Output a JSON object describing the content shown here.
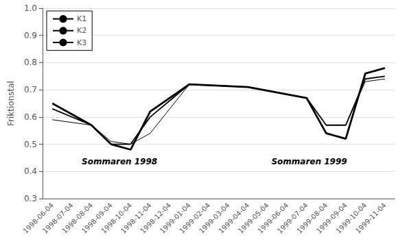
{
  "chart_data": {
    "type": "line",
    "categories": [
      "1998-06-04",
      "1998-07-04",
      "1998-08-04",
      "1998-09-04",
      "1998-10-04",
      "1998-11-04",
      "1998-12-04",
      "1999-01-04",
      "1999-02-04",
      "1999-03-04",
      "1999-04-04",
      "1999-05-04",
      "1999-06-04",
      "1999-07-04",
      "1999-08-04",
      "1999-09-04",
      "1999-10-04",
      "1999-11-04"
    ],
    "series": [
      {
        "name": "K1",
        "color": "#000000",
        "x": [
          "1998-06-04",
          "1998-08-04",
          "1998-09-04",
          "1998-10-04",
          "1998-11-04",
          "1999-01-04",
          "1999-04-04",
          "1999-07-04",
          "1999-08-04",
          "1999-09-04",
          "1999-10-04",
          "1999-11-04"
        ],
        "values": [
          0.65,
          0.57,
          0.5,
          0.48,
          0.62,
          0.72,
          0.71,
          0.67,
          0.54,
          0.52,
          0.76,
          0.78
        ]
      },
      {
        "name": "K2",
        "color": "#000000",
        "x": [
          "1998-06-04",
          "1998-08-04",
          "1998-09-04",
          "1998-10-04",
          "1998-11-04",
          "1999-01-04",
          "1999-04-04",
          "1999-07-04",
          "1999-08-04",
          "1999-09-04",
          "1999-10-04",
          "1999-11-04"
        ],
        "values": [
          0.63,
          0.57,
          0.5,
          0.5,
          0.6,
          0.72,
          0.71,
          0.67,
          0.57,
          0.57,
          0.74,
          0.75
        ]
      },
      {
        "name": "K3",
        "color": "#000000",
        "x": [
          "1998-06-04",
          "1998-08-04",
          "1998-09-04",
          "1998-10-04",
          "1998-11-04",
          "1999-01-04",
          "1999-04-04",
          "1999-07-04",
          "1999-08-04",
          "1999-09-04",
          "1999-10-04",
          "1999-11-04"
        ],
        "values": [
          0.59,
          0.57,
          0.51,
          0.5,
          0.54,
          0.72,
          0.71,
          0.67,
          0.57,
          0.57,
          0.73,
          0.74
        ]
      }
    ],
    "ylabel": "Friktionstal",
    "ylim": [
      0.3,
      1.0
    ],
    "yticks": [
      0.3,
      0.4,
      0.5,
      0.6,
      0.7,
      0.8,
      0.9,
      {
        "value": 1,
        "label": "1.0"
      }
    ],
    "annotations": [
      "Sommaren 1998",
      "Sommaren 1999"
    ],
    "grid": true,
    "legend": "upper left"
  }
}
